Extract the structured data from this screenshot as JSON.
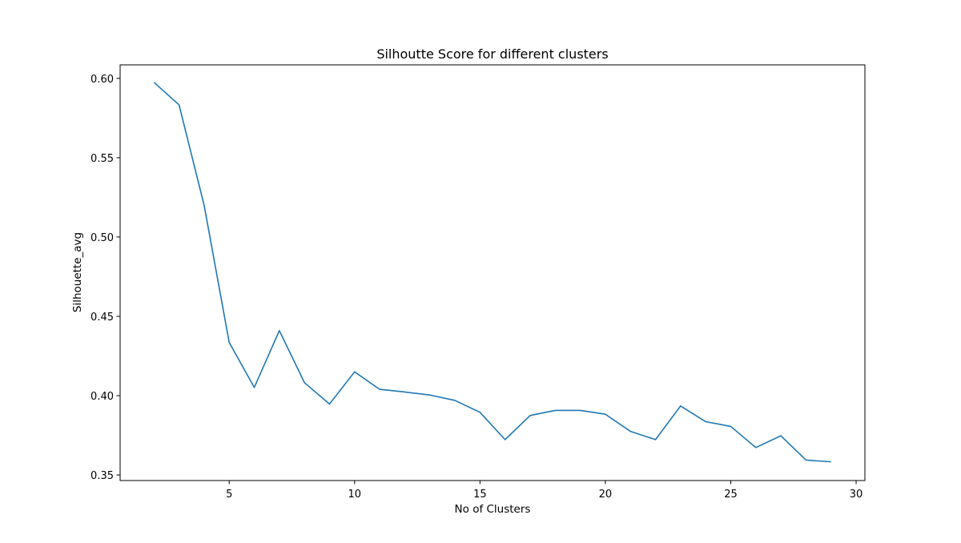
{
  "chart_data": {
    "type": "line",
    "title": "Silhoutte Score for different clusters",
    "xlabel": "No of Clusters",
    "ylabel": "Silhouette_avg",
    "xlim": [
      0.65,
      30.35
    ],
    "ylim": [
      0.3465,
      0.6085
    ],
    "xticks": [
      5,
      10,
      15,
      20,
      25,
      30
    ],
    "yticks": [
      0.35,
      0.4,
      0.45,
      0.5,
      0.55,
      0.6
    ],
    "xtick_labels": [
      "5",
      "10",
      "15",
      "20",
      "25",
      "30"
    ],
    "ytick_labels": [
      "0.35",
      "0.40",
      "0.45",
      "0.50",
      "0.55",
      "0.60"
    ],
    "grid": false,
    "series": [
      {
        "color": "#1f77b4",
        "x": [
          2,
          3,
          4,
          5,
          6,
          7,
          8,
          9,
          10,
          11,
          12,
          13,
          14,
          15,
          16,
          17,
          18,
          19,
          20,
          21,
          22,
          23,
          24,
          25,
          26,
          27,
          28,
          29
        ],
        "y": [
          0.5975,
          0.5833,
          0.52,
          0.4335,
          0.4052,
          0.441,
          0.4082,
          0.3947,
          0.415,
          0.404,
          0.4023,
          0.4004,
          0.397,
          0.3895,
          0.3723,
          0.3875,
          0.3907,
          0.3907,
          0.3883,
          0.3775,
          0.3723,
          0.3935,
          0.3836,
          0.3806,
          0.3673,
          0.3747,
          0.3594,
          0.3583
        ]
      }
    ]
  }
}
